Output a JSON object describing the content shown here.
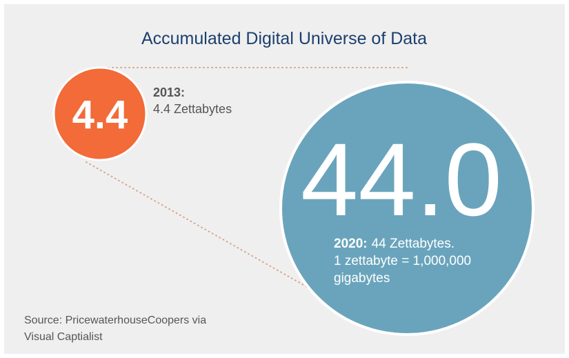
{
  "title": "Accumulated Digital Universe of Data",
  "items": [
    {
      "value_label": "4.4",
      "year": "2013:",
      "description": [
        "4.4 Zettabytes"
      ]
    },
    {
      "value_label": "44.0",
      "year": "2020:",
      "description": [
        "44 Zettabytes.",
        "1 zettabyte = 1,000,000",
        "gigabytes"
      ]
    }
  ],
  "source": [
    "Source: PricewaterhouseCoopers via",
    "Visual Captialist"
  ]
}
